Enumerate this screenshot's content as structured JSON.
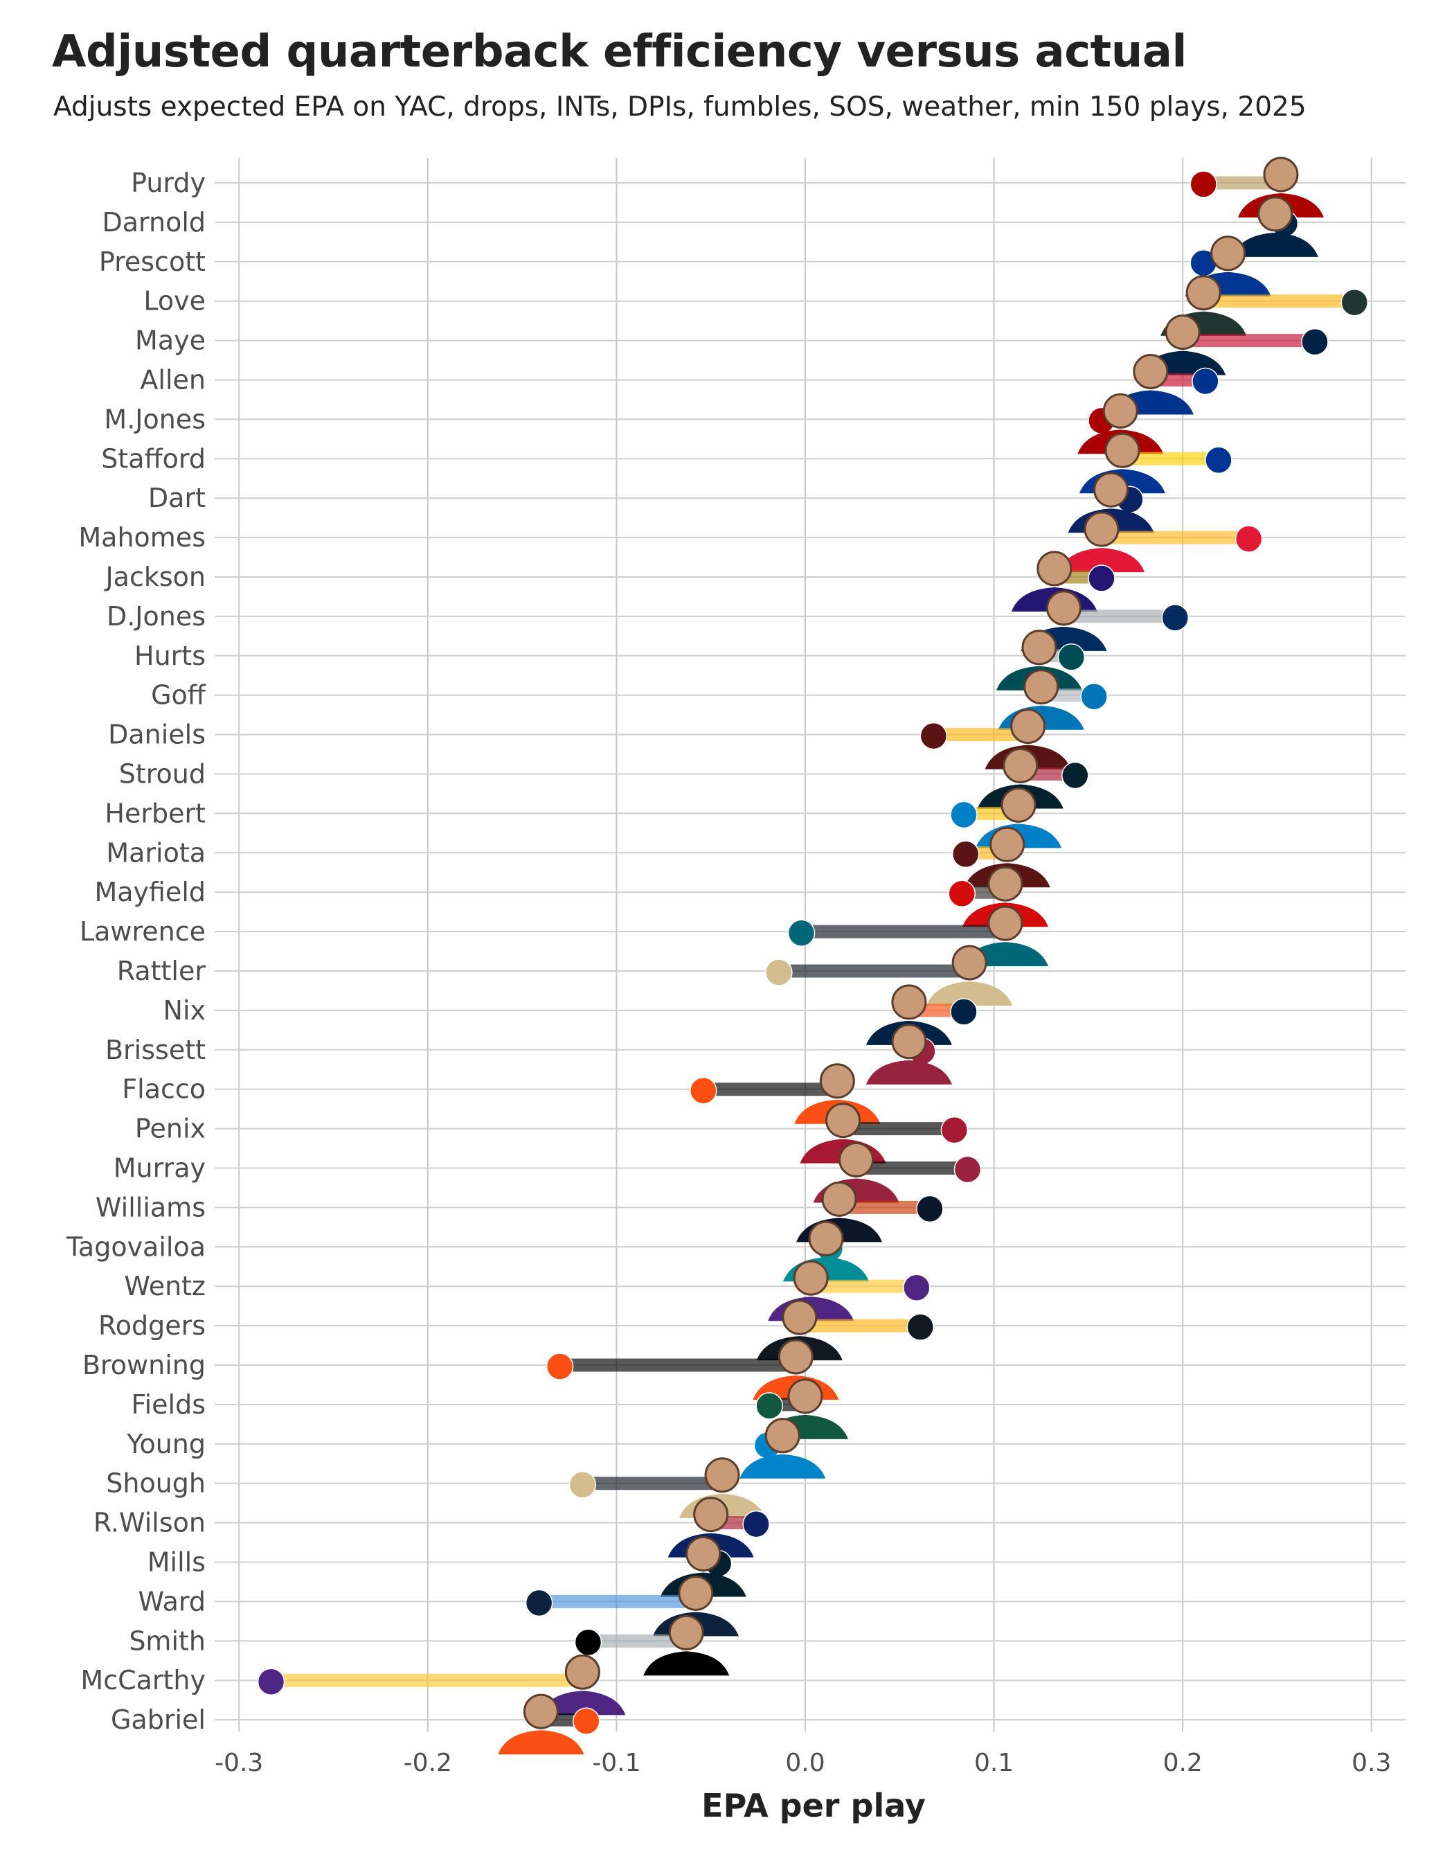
{
  "chart_data": {
    "type": "dumbbell",
    "title": "Adjusted quarterback efficiency versus actual",
    "subtitle": "Adjusts expected EPA on YAC, drops, INTs, DPIs, fumbles, SOS, weather, min 150 plays, 2025",
    "xlabel": "EPA per play",
    "ylabel": "",
    "xlim": [
      -0.31,
      0.32
    ],
    "x_ticks": [
      -0.3,
      -0.2,
      -0.1,
      0.0,
      0.1,
      0.2,
      0.3
    ],
    "x_tick_labels": [
      "-0.3",
      "-0.2",
      "-0.1",
      "0.0",
      "0.1",
      "0.2",
      "0.3"
    ],
    "grid": true,
    "rows": [
      {
        "name": "Purdy",
        "adjusted": 0.252,
        "actual": 0.211,
        "team_color": "#AA0000",
        "bar_color": "#B3995D"
      },
      {
        "name": "Darnold",
        "adjusted": 0.249,
        "actual": 0.254,
        "team_color": "#002244",
        "bar_color": "#69BE28"
      },
      {
        "name": "Prescott",
        "adjusted": 0.224,
        "actual": 0.211,
        "team_color": "#003594",
        "bar_color": "#869397"
      },
      {
        "name": "Love",
        "adjusted": 0.211,
        "actual": 0.291,
        "team_color": "#203731",
        "bar_color": "#FFB612"
      },
      {
        "name": "Maye",
        "adjusted": 0.2,
        "actual": 0.27,
        "team_color": "#002244",
        "bar_color": "#C60C30"
      },
      {
        "name": "Allen",
        "adjusted": 0.183,
        "actual": 0.212,
        "team_color": "#00338D",
        "bar_color": "#C60C30"
      },
      {
        "name": "M.Jones",
        "adjusted": 0.167,
        "actual": 0.157,
        "team_color": "#AA0000",
        "bar_color": "#B3995D"
      },
      {
        "name": "Stafford",
        "adjusted": 0.168,
        "actual": 0.219,
        "team_color": "#003594",
        "bar_color": "#FFD100"
      },
      {
        "name": "Dart",
        "adjusted": 0.162,
        "actual": 0.172,
        "team_color": "#0B2265",
        "bar_color": "#A71930"
      },
      {
        "name": "Mahomes",
        "adjusted": 0.157,
        "actual": 0.235,
        "team_color": "#E31837",
        "bar_color": "#FFB81C"
      },
      {
        "name": "Jackson",
        "adjusted": 0.132,
        "actual": 0.157,
        "team_color": "#241773",
        "bar_color": "#9E7C0C"
      },
      {
        "name": "D.Jones",
        "adjusted": 0.137,
        "actual": 0.196,
        "team_color": "#002C5F",
        "bar_color": "#A2AAAD"
      },
      {
        "name": "Hurts",
        "adjusted": 0.124,
        "actual": 0.141,
        "team_color": "#004C54",
        "bar_color": "#A5ACAF"
      },
      {
        "name": "Goff",
        "adjusted": 0.125,
        "actual": 0.153,
        "team_color": "#0076B6",
        "bar_color": "#B0B7BC"
      },
      {
        "name": "Daniels",
        "adjusted": 0.118,
        "actual": 0.068,
        "team_color": "#5A1414",
        "bar_color": "#FFB612"
      },
      {
        "name": "Stroud",
        "adjusted": 0.114,
        "actual": 0.143,
        "team_color": "#03202F",
        "bar_color": "#A71930"
      },
      {
        "name": "Herbert",
        "adjusted": 0.113,
        "actual": 0.084,
        "team_color": "#0080C6",
        "bar_color": "#FFC20E"
      },
      {
        "name": "Mariota",
        "adjusted": 0.107,
        "actual": 0.085,
        "team_color": "#5A1414",
        "bar_color": "#FFB612"
      },
      {
        "name": "Mayfield",
        "adjusted": 0.106,
        "actual": 0.083,
        "team_color": "#D50A0A",
        "bar_color": "#34302B"
      },
      {
        "name": "Lawrence",
        "adjusted": 0.106,
        "actual": -0.002,
        "team_color": "#006778",
        "bar_color": "#101820"
      },
      {
        "name": "Rattler",
        "adjusted": 0.087,
        "actual": -0.014,
        "team_color": "#D3BC8D",
        "bar_color": "#101820"
      },
      {
        "name": "Nix",
        "adjusted": 0.055,
        "actual": 0.084,
        "team_color": "#002244",
        "bar_color": "#FB4F14"
      },
      {
        "name": "Brissett",
        "adjusted": 0.055,
        "actual": 0.062,
        "team_color": "#97233F",
        "bar_color": "#000000"
      },
      {
        "name": "Flacco",
        "adjusted": 0.017,
        "actual": -0.054,
        "team_color": "#FB4F14",
        "bar_color": "#000000"
      },
      {
        "name": "Penix",
        "adjusted": 0.02,
        "actual": 0.079,
        "team_color": "#A71930",
        "bar_color": "#000000"
      },
      {
        "name": "Murray",
        "adjusted": 0.027,
        "actual": 0.086,
        "team_color": "#97233F",
        "bar_color": "#000000"
      },
      {
        "name": "Williams",
        "adjusted": 0.018,
        "actual": 0.066,
        "team_color": "#0B162A",
        "bar_color": "#C83803"
      },
      {
        "name": "Tagovailoa",
        "adjusted": 0.011,
        "actual": 0.013,
        "team_color": "#008E97",
        "bar_color": "#FC4C02"
      },
      {
        "name": "Wentz",
        "adjusted": 0.003,
        "actual": 0.059,
        "team_color": "#4F2683",
        "bar_color": "#FFC62F"
      },
      {
        "name": "Rodgers",
        "adjusted": -0.003,
        "actual": 0.061,
        "team_color": "#101820",
        "bar_color": "#FFB612"
      },
      {
        "name": "Browning",
        "adjusted": -0.005,
        "actual": -0.13,
        "team_color": "#FB4F14",
        "bar_color": "#000000"
      },
      {
        "name": "Fields",
        "adjusted": 0.0,
        "actual": -0.019,
        "team_color": "#125740",
        "bar_color": "#000000"
      },
      {
        "name": "Young",
        "adjusted": -0.012,
        "actual": -0.02,
        "team_color": "#0085CA",
        "bar_color": "#101820"
      },
      {
        "name": "Shough",
        "adjusted": -0.044,
        "actual": -0.118,
        "team_color": "#D3BC8D",
        "bar_color": "#101820"
      },
      {
        "name": "R.Wilson",
        "adjusted": -0.05,
        "actual": -0.026,
        "team_color": "#0B2265",
        "bar_color": "#A71930"
      },
      {
        "name": "Mills",
        "adjusted": -0.054,
        "actual": -0.046,
        "team_color": "#03202F",
        "bar_color": "#A71930"
      },
      {
        "name": "Ward",
        "adjusted": -0.058,
        "actual": -0.141,
        "team_color": "#0C2340",
        "bar_color": "#4B92DB"
      },
      {
        "name": "Smith",
        "adjusted": -0.063,
        "actual": -0.115,
        "team_color": "#000000",
        "bar_color": "#A5ACAF"
      },
      {
        "name": "McCarthy",
        "adjusted": -0.118,
        "actual": -0.283,
        "team_color": "#4F2683",
        "bar_color": "#FFC62F"
      },
      {
        "name": "Gabriel",
        "adjusted": -0.14,
        "actual": -0.116,
        "team_color": "#FB4F14",
        "bar_color": "#000000"
      }
    ]
  }
}
